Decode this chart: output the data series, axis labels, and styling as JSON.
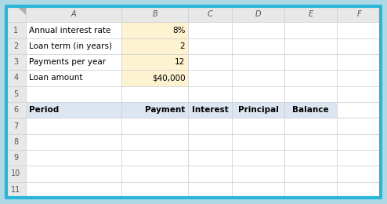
{
  "col_headers": [
    "",
    "A",
    "B",
    "C",
    "D",
    "E",
    "F"
  ],
  "row_numbers": [
    "",
    "1",
    "2",
    "3",
    "4",
    "5",
    "6",
    "7",
    "8",
    "9",
    "10",
    "11"
  ],
  "label_col_data": [
    "Annual interest rate",
    "Loan term (in years)",
    "Payments per year",
    "Loan amount",
    "",
    "Period",
    "",
    "",
    "",
    "",
    ""
  ],
  "value_col_data": [
    "8%",
    "2",
    "12",
    "$40,000",
    "",
    "Payment",
    "",
    "",
    "",
    "",
    ""
  ],
  "header_row6_extras": [
    "Interest",
    "Principal",
    "Balance"
  ],
  "bg_outer": "#add8e6",
  "bg_white": "#ffffff",
  "bg_col_header": "#e8e8e8",
  "bg_row_header": "#e8e8e8",
  "bg_yellow_cells": "#fdf3d0",
  "bg_blue_row6": "#dce6f1",
  "grid_color": "#d0d0d0",
  "border_outer_color": "#29b6d8",
  "outer_border_lw": 3.0,
  "inner_lw": 0.5,
  "col_props_raw": [
    0.042,
    0.21,
    0.145,
    0.095,
    0.115,
    0.115,
    0.095
  ],
  "n_rows": 12,
  "fontsize_header": 7.0,
  "fontsize_data": 7.5
}
